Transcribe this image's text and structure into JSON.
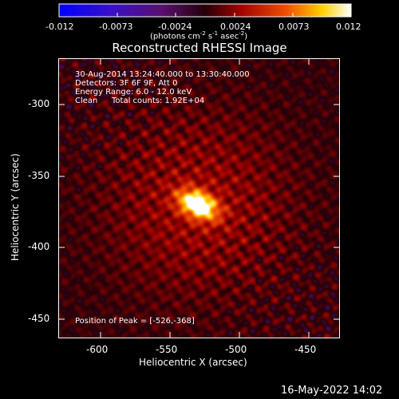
{
  "colorbar": {
    "tick_labels": [
      "-0.012",
      "-0.0073",
      "-0.0024",
      "0.0024",
      "0.0073",
      "0.012"
    ],
    "units_prefix": "(photons cm",
    "units_sup1": "-2",
    "units_mid": " s",
    "units_sup2": "-1",
    "units_mid2": " asec",
    "units_sup3": "-2",
    "units_suffix": ")",
    "range": [
      -0.012,
      0.012
    ],
    "colormap": "blue-purple-red-orange-yellow-white"
  },
  "title": "Reconstructed RHESSI Image",
  "info": {
    "time_range": "30-Aug-2014 13:24:40.000 to 13:30:40.000",
    "detectors": "Detectors: 3F 6F 9F, Att 0",
    "energy": "Energy Range: 6.0 - 12.0 keV",
    "method": "Clean",
    "counts": "Total counts: 1.92E+04",
    "peak": "Position of Peak = [-526,-368]"
  },
  "axes": {
    "xlabel": "Heliocentric X (arcsec)",
    "ylabel": "Heliocentric Y (arcsec)",
    "xticks": [
      "-600",
      "-550",
      "-500",
      "-450"
    ],
    "yticks": [
      "-300",
      "-350",
      "-400",
      "-450"
    ],
    "xlim": [
      -627,
      -423
    ],
    "ylim": [
      -465,
      -262
    ]
  },
  "image": {
    "peak_position": [
      -526,
      -368
    ],
    "peak_value_relative": 1.0
  },
  "date_stamp": "16-May-2022 14:02"
}
